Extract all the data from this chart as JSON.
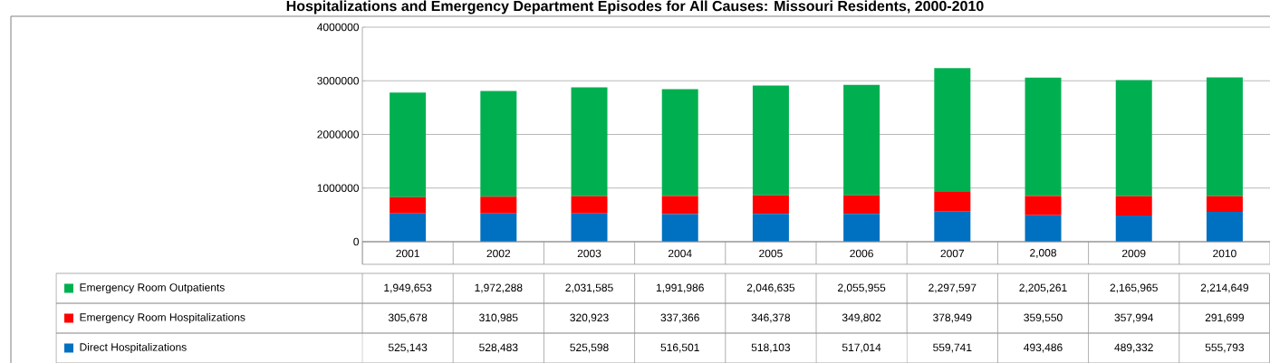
{
  "chart_data": {
    "type": "bar",
    "stacked": true,
    "title": "Hospitalizations and Emergency Department Episodes for All Causes: Missouri Residents, 2000-2010",
    "categories": [
      "2001",
      "2002",
      "2003",
      "2004",
      "2005",
      "2006",
      "2007",
      "2,008",
      "2009",
      "2010"
    ],
    "series": [
      {
        "name": "Direct Hospitalizations",
        "color": "#0070c0",
        "values": [
          525143,
          528483,
          525598,
          516501,
          518103,
          517014,
          559741,
          493486,
          489332,
          555793
        ],
        "value_labels": [
          "525,143",
          "528,483",
          "525,598",
          "516,501",
          "518,103",
          "517,014",
          "559,741",
          "493,486",
          "489,332",
          "555,793"
        ]
      },
      {
        "name": "Emergency Room Hospitalizations",
        "color": "#ff0000",
        "values": [
          305678,
          310985,
          320923,
          337366,
          346378,
          349802,
          378949,
          359550,
          357994,
          291699
        ],
        "value_labels": [
          "305,678",
          "310,985",
          "320,923",
          "337,366",
          "346,378",
          "349,802",
          "378,949",
          "359,550",
          "357,994",
          "291,699"
        ]
      },
      {
        "name": "Emergency Room Outpatients",
        "color": "#00b050",
        "values": [
          1949653,
          1972288,
          2031585,
          1991986,
          2046635,
          2055955,
          2297597,
          2205261,
          2165965,
          2214649
        ],
        "value_labels": [
          "1,949,653",
          "1,972,288",
          "2,031,585",
          "1,991,986",
          "2,046,635",
          "2,055,955",
          "2,297,597",
          "2,205,261",
          "2,165,965",
          "2,214,649"
        ]
      }
    ],
    "ylim": [
      0,
      4000000
    ],
    "yticks": [
      0,
      1000000,
      2000000,
      3000000,
      4000000
    ],
    "grid": "y",
    "legend": "bottom"
  }
}
